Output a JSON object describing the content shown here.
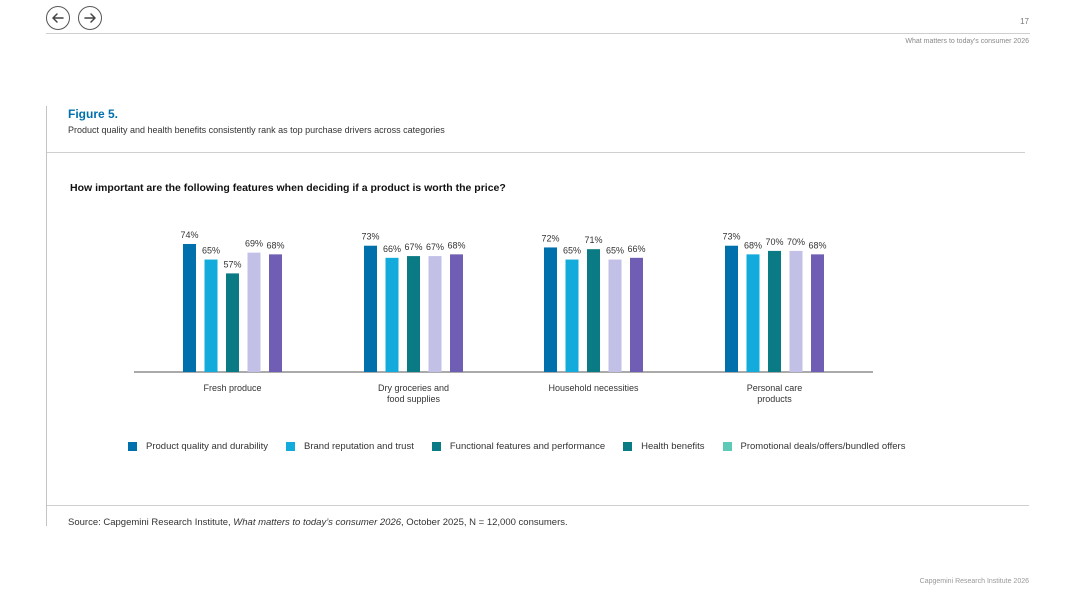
{
  "header": {
    "page_number": "17",
    "report_title": "What matters to today’s consumer 2026"
  },
  "figure": {
    "label": "Figure 5.",
    "caption": "Product quality and health benefits consistently rank as top purchase drivers across categories"
  },
  "colors": {
    "accent": "#0070ad",
    "series": [
      "#0070ad",
      "#12abdb",
      "#0a7b84",
      "#c2c0e6",
      "#6f5eb3"
    ],
    "legend": [
      "#0070ad",
      "#12abdb",
      "#0a7b84",
      "#0a7b84",
      "#5fc9b8"
    ]
  },
  "chart_data": {
    "type": "bar",
    "title": "How important are the following features when deciding if a product is worth the price?",
    "categories": [
      [
        "Fresh produce"
      ],
      [
        "Dry groceries and",
        "food supplies"
      ],
      [
        "Household necessities"
      ],
      [
        "Personal care",
        "products"
      ]
    ],
    "series": [
      {
        "name": "Product quality and durability",
        "values": [
          74,
          73,
          72,
          73
        ]
      },
      {
        "name": "Brand reputation and trust",
        "values": [
          65,
          66,
          65,
          68
        ]
      },
      {
        "name": "Functional features and performance",
        "values": [
          57,
          67,
          71,
          70
        ]
      },
      {
        "name": "Health benefits",
        "values": [
          69,
          67,
          65,
          70
        ]
      },
      {
        "name": "Promotional deals/offers/bundled offers",
        "values": [
          68,
          68,
          66,
          68
        ]
      }
    ],
    "legend_labels": [
      "Product quality and durability",
      "Brand reputation and trust",
      "Functional features and performance",
      "Health benefits",
      "Promotional deals/offers/bundled offers"
    ],
    "value_suffix": "%",
    "ylim": [
      0,
      100
    ],
    "legend_position": "bottom"
  },
  "source": {
    "prefix": "Source: Capgemini Research Institute, ",
    "italic": "What matters to today’s consumer 2026",
    "suffix": ", October 2025, N = 12,000 consumers."
  },
  "footer": {
    "text": "Capgemini Research Institute 2026"
  }
}
